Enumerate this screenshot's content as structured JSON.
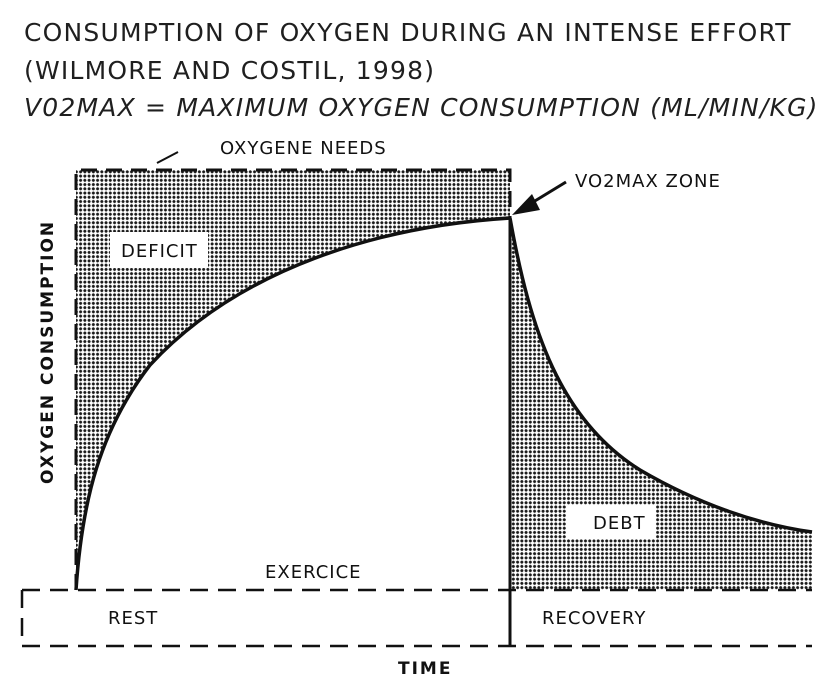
{
  "header": {
    "title_line1": "CONSUMPTION OF OXYGEN DURING AN INTENSE EFFORT",
    "title_line2": "(WILMORE AND COSTIL, 1998)",
    "subtitle": "V02MAX = MAXIMUM OXYGEN CONSUMPTION (ML/MIN/KG)"
  },
  "diagram": {
    "labels": {
      "oxygene_needs": "OXYGENE NEEDS",
      "vo2max_zone": "VO2MAX ZONE",
      "deficit": "DEFICIT",
      "debt": "DEBT",
      "exercice": "EXERCICE",
      "rest": "REST",
      "recovery": "RECOVERY"
    },
    "axes": {
      "y": "OXYGEN CONSUMPTION",
      "x": "TIME"
    },
    "colors": {
      "line": "#111111",
      "hatch": "#1a1a1a",
      "background": "#ffffff"
    }
  }
}
